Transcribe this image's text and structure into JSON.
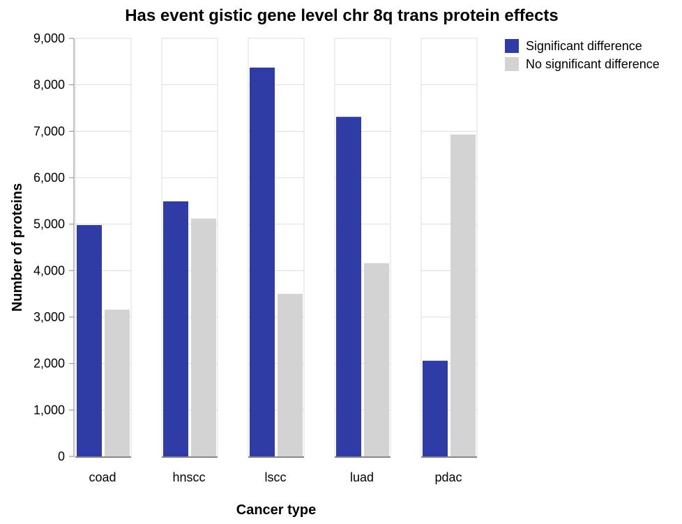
{
  "chart_data": {
    "type": "bar",
    "title": "Has event gistic gene level chr 8q trans protein effects",
    "xlabel": "Cancer type",
    "ylabel": "Number of proteins",
    "categories": [
      "coad",
      "hnscc",
      "lscc",
      "luad",
      "pdac"
    ],
    "series": [
      {
        "name": "Significant difference",
        "color": "#2f3ca5",
        "values": [
          4980,
          5490,
          8370,
          7310,
          2060
        ]
      },
      {
        "name": "No significant difference",
        "color": "#d3d3d3",
        "values": [
          3160,
          5120,
          3500,
          4160,
          6930
        ]
      }
    ],
    "ylim": [
      0,
      9000
    ],
    "yticks": [
      "0",
      "1,000",
      "2,000",
      "3,000",
      "4,000",
      "5,000",
      "6,000",
      "7,000",
      "8,000",
      "9,000"
    ],
    "grid": true,
    "legend_position": "top-right"
  }
}
